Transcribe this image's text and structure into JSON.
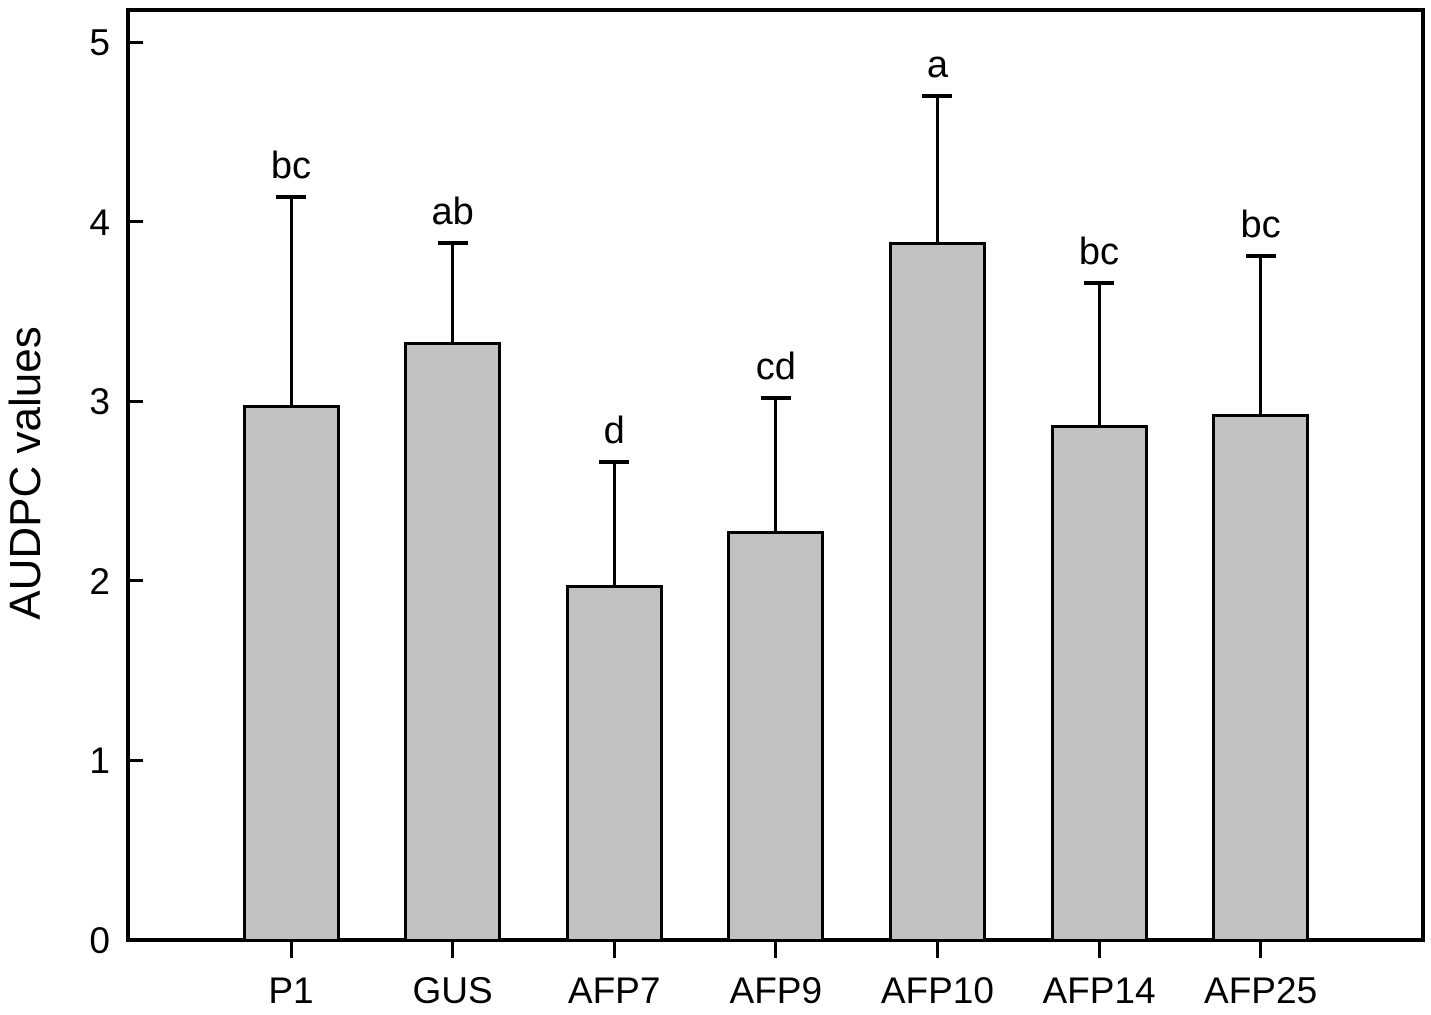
{
  "chart_data": {
    "type": "bar",
    "title": "",
    "xlabel": "",
    "ylabel": "AUDPC values",
    "categories": [
      "P1",
      "GUS",
      "AFP7",
      "AFP9",
      "AFP10",
      "AFP14",
      "AFP25"
    ],
    "values": [
      2.98,
      3.33,
      1.98,
      2.28,
      3.89,
      2.87,
      2.93
    ],
    "error_upper": [
      1.16,
      0.55,
      0.68,
      0.74,
      0.81,
      0.79,
      0.88
    ],
    "sig_letters": [
      "bc",
      "ab",
      "d",
      "cd",
      "a",
      "bc",
      "bc"
    ],
    "yticks": [
      0,
      1,
      2,
      3,
      4,
      5
    ],
    "ylim": [
      0,
      5.18
    ],
    "grid": false,
    "legend": false,
    "bar_fill_color": "#c1c1c1",
    "line_color": "#000000",
    "background_color": "#ffffff"
  }
}
